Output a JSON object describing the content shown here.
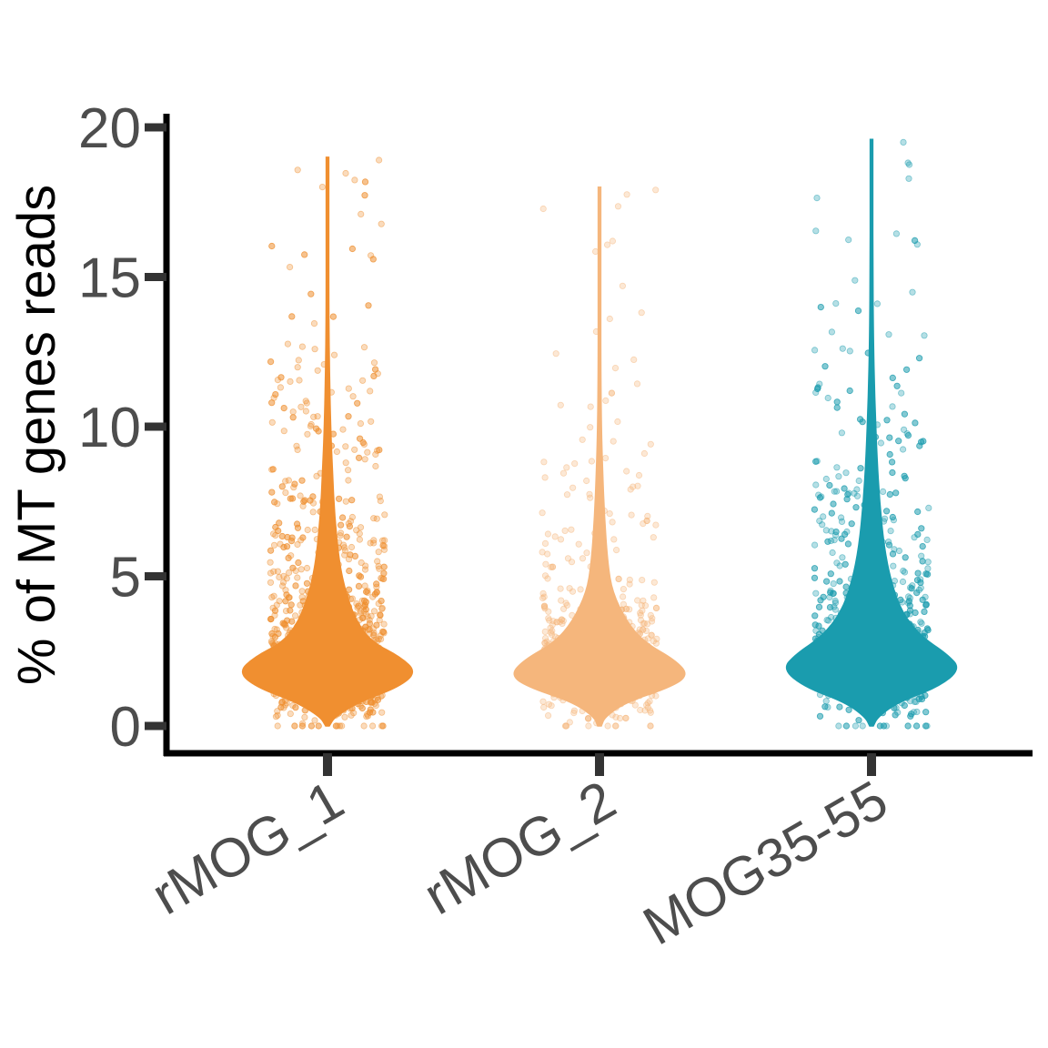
{
  "chart_data": {
    "type": "violin",
    "title": "",
    "xlabel": "",
    "ylabel": "% of MT genes reads",
    "ylim": [
      0,
      20
    ],
    "yticks": [
      0,
      5,
      10,
      15,
      20
    ],
    "categories": [
      "rMOG_1",
      "rMOG_2",
      "MOG35-55"
    ],
    "grid": false,
    "legend": "none",
    "series": [
      {
        "category": "rMOG_1",
        "color": "#F08F30",
        "point_count": 1400,
        "distribution": {
          "mode": 1.8,
          "median": 2.2,
          "q3": 3.6,
          "p95": 7.8,
          "max": 19.0
        },
        "violin_profile": [
          [
            0,
            0.02
          ],
          [
            0.3,
            0.08
          ],
          [
            0.8,
            0.35
          ],
          [
            1.3,
            0.8
          ],
          [
            1.8,
            1.0
          ],
          [
            2.3,
            0.82
          ],
          [
            2.8,
            0.5
          ],
          [
            3.5,
            0.32
          ],
          [
            4.5,
            0.2
          ],
          [
            5.5,
            0.13
          ],
          [
            7,
            0.08
          ],
          [
            8.5,
            0.055
          ],
          [
            10,
            0.035
          ],
          [
            12,
            0.02
          ],
          [
            14,
            0.012
          ],
          [
            16.5,
            0.008
          ],
          [
            19.0,
            0.004
          ]
        ]
      },
      {
        "category": "rMOG_2",
        "color": "#F5B67C",
        "point_count": 700,
        "distribution": {
          "mode": 1.7,
          "median": 2.0,
          "q3": 3.0,
          "p95": 6.5,
          "max": 18.0
        },
        "violin_profile": [
          [
            0,
            0.02
          ],
          [
            0.3,
            0.06
          ],
          [
            0.8,
            0.3
          ],
          [
            1.3,
            0.8
          ],
          [
            1.7,
            1.0
          ],
          [
            2.2,
            0.85
          ],
          [
            2.8,
            0.5
          ],
          [
            3.5,
            0.3
          ],
          [
            4.5,
            0.14
          ],
          [
            5.5,
            0.09
          ],
          [
            7,
            0.055
          ],
          [
            8.5,
            0.035
          ],
          [
            10,
            0.02
          ],
          [
            12,
            0.012
          ],
          [
            14,
            0.008
          ],
          [
            16,
            0.005
          ],
          [
            18.0,
            0.003
          ]
        ]
      },
      {
        "category": "MOG35-55",
        "color": "#1A9CAE",
        "point_count": 1100,
        "distribution": {
          "mode": 1.9,
          "median": 2.4,
          "q3": 3.8,
          "p95": 8.5,
          "max": 19.6
        },
        "violin_profile": [
          [
            0,
            0.02
          ],
          [
            0.3,
            0.07
          ],
          [
            0.8,
            0.3
          ],
          [
            1.3,
            0.75
          ],
          [
            1.9,
            1.0
          ],
          [
            2.4,
            0.85
          ],
          [
            3.0,
            0.55
          ],
          [
            3.8,
            0.34
          ],
          [
            4.8,
            0.22
          ],
          [
            6,
            0.14
          ],
          [
            7.5,
            0.09
          ],
          [
            9,
            0.06
          ],
          [
            11,
            0.035
          ],
          [
            13,
            0.02
          ],
          [
            15.5,
            0.012
          ],
          [
            17.5,
            0.007
          ],
          [
            19.6,
            0.004
          ]
        ]
      }
    ]
  }
}
